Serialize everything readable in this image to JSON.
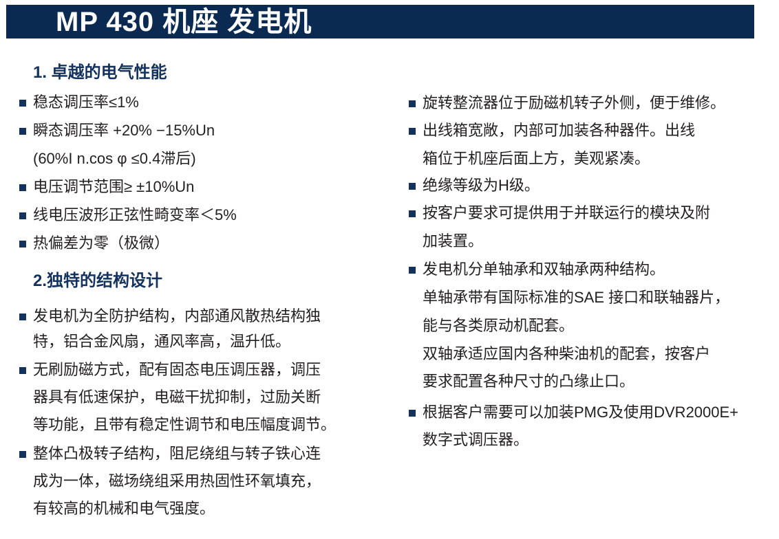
{
  "title": "MP 430 机座 发电机",
  "left": {
    "section1": {
      "heading": "1. 卓越的电气性能",
      "items": [
        {
          "lines": [
            "稳态调压率≤1%"
          ]
        },
        {
          "lines": [
            "瞬态调压率 +20% −15%Un",
            "(60%I n.cos φ ≤0.4滞后)"
          ]
        },
        {
          "lines": [
            "电压调节范围≥ ±10%Un"
          ]
        },
        {
          "lines": [
            "线电压波形正弦性畸变率＜5%"
          ]
        },
        {
          "lines": [
            "热偏差为零（极微）"
          ]
        }
      ]
    },
    "section2": {
      "heading": "2.独特的结构设计",
      "items": [
        {
          "lines": [
            "发电机为全防护结构，内部通风散热结构独",
            "特，铝合金风扇，通风率高，温升低。"
          ]
        },
        {
          "lines": [
            "无刷励磁方式，配有固态电压调压器，调压",
            "器具有低速保护，电磁干扰抑制，过励关断",
            "等功能，且带有稳定性调节和电压幅度调节。"
          ]
        },
        {
          "lines": [
            "整体凸极转子结构，阻尼绕组与转子铁心连",
            "成为一体，磁场绕组采用热固性环氧填充，",
            "有较高的机械和电气强度。"
          ]
        }
      ]
    }
  },
  "right": {
    "items": [
      {
        "lines": [
          "旋转整流器位于励磁机转子外侧，便于维修。"
        ]
      },
      {
        "lines": [
          "出线箱宽敞，内部可加装各种器件。出线",
          "箱位于机座后面上方，美观紧凑。"
        ]
      },
      {
        "lines": [
          "绝缘等级为H级。"
        ]
      },
      {
        "lines": [
          "按客户要求可提供用于并联运行的模块及附",
          "加装置。"
        ]
      },
      {
        "lines": [
          "发电机分单轴承和双轴承两种结构。",
          "单轴承带有国际标准的SAE 接口和联轴器片，",
          "能与各类原动机配套。",
          "双轴承适应国内各种柴油机的配套，按客户",
          "要求配置各种尺寸的凸缘止口。"
        ]
      },
      {
        "lines": [
          "根据客户需要可以加装PMG及使用DVR2000E+",
          "数字式调压器。"
        ]
      }
    ]
  },
  "colors": {
    "banner": "#0b2a52",
    "heading": "#14325e",
    "text": "#231f20",
    "bullet": "#14325e"
  },
  "icons": {
    "bullet": "square-bullet-icon"
  }
}
